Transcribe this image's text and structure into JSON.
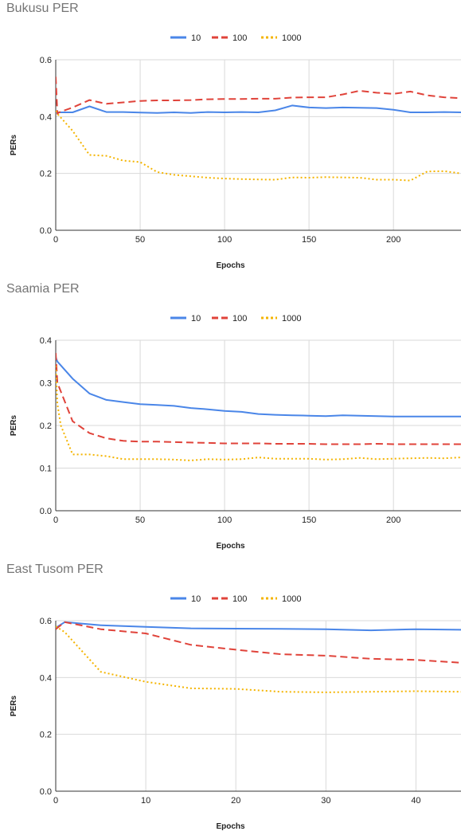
{
  "chart_data": [
    {
      "type": "line",
      "title": "Bukusu PER",
      "xlabel": "Epochs",
      "ylabel": "PERs",
      "xlim": [
        0,
        240
      ],
      "ylim": [
        0,
        0.6
      ],
      "x_ticks": [
        0,
        50,
        100,
        150,
        200
      ],
      "y_ticks": [
        "0.0",
        "0.2",
        "0.4",
        "0.6"
      ],
      "grid": true,
      "legend": "top-center",
      "series": [
        {
          "name": "10",
          "color": "#4a86e8",
          "dash": "solid",
          "x": [
            0,
            1,
            10,
            20,
            30,
            40,
            50,
            60,
            70,
            80,
            90,
            100,
            110,
            120,
            130,
            140,
            150,
            160,
            170,
            180,
            190,
            200,
            210,
            220,
            230,
            240
          ],
          "y": [
            0.415,
            0.415,
            0.415,
            0.436,
            0.416,
            0.416,
            0.414,
            0.413,
            0.415,
            0.413,
            0.416,
            0.415,
            0.416,
            0.415,
            0.422,
            0.439,
            0.432,
            0.43,
            0.432,
            0.431,
            0.43,
            0.424,
            0.415,
            0.415,
            0.416,
            0.415
          ]
        },
        {
          "name": "100",
          "color": "#e0433a",
          "dash": "dashed",
          "x": [
            0,
            1,
            2,
            10,
            20,
            30,
            40,
            50,
            60,
            70,
            80,
            90,
            100,
            110,
            120,
            130,
            140,
            150,
            160,
            170,
            180,
            190,
            200,
            210,
            220,
            230,
            240
          ],
          "y": [
            0.54,
            0.41,
            0.415,
            0.432,
            0.458,
            0.445,
            0.45,
            0.455,
            0.457,
            0.457,
            0.458,
            0.461,
            0.462,
            0.462,
            0.463,
            0.463,
            0.467,
            0.468,
            0.468,
            0.478,
            0.491,
            0.484,
            0.48,
            0.488,
            0.475,
            0.468,
            0.465
          ]
        },
        {
          "name": "1000",
          "color": "#f4b400",
          "dash": "dotted",
          "x": [
            0,
            1,
            10,
            20,
            30,
            40,
            50,
            60,
            70,
            80,
            90,
            100,
            110,
            120,
            130,
            140,
            150,
            160,
            170,
            180,
            190,
            200,
            210,
            220,
            230,
            240
          ],
          "y": [
            0.42,
            0.41,
            0.35,
            0.265,
            0.262,
            0.245,
            0.24,
            0.205,
            0.195,
            0.19,
            0.185,
            0.182,
            0.18,
            0.179,
            0.178,
            0.186,
            0.185,
            0.187,
            0.186,
            0.185,
            0.178,
            0.178,
            0.175,
            0.207,
            0.208,
            0.2
          ]
        }
      ]
    },
    {
      "type": "line",
      "title": "Saamia PER",
      "xlabel": "Epochs",
      "ylabel": "PERs",
      "xlim": [
        0,
        240
      ],
      "ylim": [
        0,
        0.4
      ],
      "x_ticks": [
        0,
        50,
        100,
        150,
        200
      ],
      "y_ticks": [
        "0.0",
        "0.1",
        "0.2",
        "0.3",
        "0.4"
      ],
      "grid": true,
      "legend": "top-center",
      "series": [
        {
          "name": "10",
          "color": "#4a86e8",
          "dash": "solid",
          "x": [
            0,
            1,
            10,
            20,
            30,
            40,
            50,
            60,
            70,
            80,
            90,
            100,
            110,
            120,
            130,
            140,
            150,
            160,
            170,
            180,
            190,
            200,
            210,
            220,
            230,
            240
          ],
          "y": [
            0.36,
            0.35,
            0.31,
            0.275,
            0.26,
            0.255,
            0.25,
            0.248,
            0.246,
            0.241,
            0.238,
            0.234,
            0.232,
            0.227,
            0.225,
            0.224,
            0.223,
            0.222,
            0.224,
            0.223,
            0.222,
            0.221,
            0.221,
            0.221,
            0.221,
            0.221
          ]
        },
        {
          "name": "100",
          "color": "#e0433a",
          "dash": "dashed",
          "x": [
            0,
            1,
            10,
            20,
            30,
            40,
            50,
            60,
            70,
            80,
            90,
            100,
            110,
            120,
            130,
            140,
            150,
            160,
            170,
            180,
            190,
            200,
            210,
            220,
            230,
            240
          ],
          "y": [
            0.37,
            0.3,
            0.21,
            0.182,
            0.17,
            0.164,
            0.162,
            0.162,
            0.161,
            0.16,
            0.159,
            0.158,
            0.158,
            0.158,
            0.157,
            0.157,
            0.157,
            0.156,
            0.156,
            0.156,
            0.157,
            0.156,
            0.156,
            0.156,
            0.156,
            0.156
          ]
        },
        {
          "name": "1000",
          "color": "#f4b400",
          "dash": "dotted",
          "x": [
            0,
            1,
            3,
            10,
            20,
            30,
            40,
            50,
            60,
            70,
            80,
            90,
            100,
            110,
            120,
            130,
            140,
            150,
            160,
            170,
            180,
            190,
            200,
            210,
            220,
            230,
            240
          ],
          "y": [
            0.34,
            0.25,
            0.2,
            0.132,
            0.132,
            0.128,
            0.121,
            0.121,
            0.121,
            0.12,
            0.118,
            0.121,
            0.12,
            0.121,
            0.125,
            0.122,
            0.122,
            0.122,
            0.12,
            0.121,
            0.124,
            0.121,
            0.122,
            0.123,
            0.124,
            0.123,
            0.125
          ]
        }
      ]
    },
    {
      "type": "line",
      "title": "East Tusom PER",
      "xlabel": "Epochs",
      "ylabel": "PERs",
      "xlim": [
        0,
        45
      ],
      "ylim": [
        0,
        0.6
      ],
      "x_ticks": [
        0,
        10,
        20,
        30,
        40
      ],
      "y_ticks": [
        "0.0",
        "0.2",
        "0.4",
        "0.6"
      ],
      "grid": true,
      "legend": "top-center",
      "series": [
        {
          "name": "10",
          "color": "#4a86e8",
          "dash": "solid",
          "x": [
            0,
            1,
            5,
            10,
            15,
            20,
            25,
            30,
            35,
            40,
            45
          ],
          "y": [
            0.575,
            0.595,
            0.584,
            0.578,
            0.573,
            0.572,
            0.571,
            0.57,
            0.566,
            0.57,
            0.568
          ]
        },
        {
          "name": "100",
          "color": "#e0433a",
          "dash": "dashed",
          "x": [
            0,
            1,
            5,
            10,
            15,
            20,
            25,
            30,
            35,
            40,
            45
          ],
          "y": [
            0.57,
            0.595,
            0.57,
            0.555,
            0.515,
            0.498,
            0.482,
            0.477,
            0.466,
            0.462,
            0.452
          ]
        },
        {
          "name": "1000",
          "color": "#f4b400",
          "dash": "dotted",
          "x": [
            0,
            1,
            5,
            10,
            15,
            20,
            25,
            30,
            35,
            40,
            45
          ],
          "y": [
            0.58,
            0.56,
            0.42,
            0.385,
            0.362,
            0.36,
            0.35,
            0.348,
            0.35,
            0.352,
            0.35
          ]
        }
      ]
    }
  ]
}
